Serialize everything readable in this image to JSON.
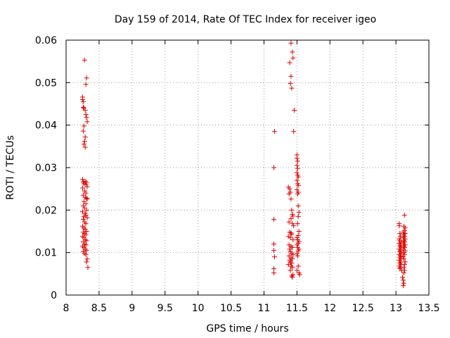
{
  "chart_data": {
    "type": "scatter",
    "title": "Day 159 of 2014, Rate Of TEC Index for receiver igeo",
    "xlabel": "GPS time / hours",
    "ylabel": "ROTI / TECUs",
    "xlim": [
      8,
      13.5
    ],
    "ylim": [
      0,
      0.06
    ],
    "xticks": [
      "8",
      "8.5",
      "9",
      "9.5",
      "10",
      "10.5",
      "11",
      "11.5",
      "12",
      "12.5",
      "13",
      "13.5"
    ],
    "yticks": [
      "0",
      "0.01",
      "0.02",
      "0.03",
      "0.04",
      "0.05",
      "0.06"
    ],
    "grid": true,
    "marker": "+",
    "color": "#e00000",
    "series": [
      {
        "name": "ROTI",
        "points": [
          [
            8.25,
            0.0466
          ],
          [
            8.25,
            0.046
          ],
          [
            8.26,
            0.0455
          ],
          [
            8.26,
            0.0442
          ],
          [
            8.27,
            0.044
          ],
          [
            8.28,
            0.0553
          ],
          [
            8.31,
            0.0511
          ],
          [
            8.3,
            0.0496
          ],
          [
            8.29,
            0.0435
          ],
          [
            8.3,
            0.0425
          ],
          [
            8.31,
            0.0418
          ],
          [
            8.32,
            0.0408
          ],
          [
            8.27,
            0.0398
          ],
          [
            8.26,
            0.0386
          ],
          [
            8.29,
            0.0372
          ],
          [
            8.28,
            0.0362
          ],
          [
            8.27,
            0.0355
          ],
          [
            8.29,
            0.0348
          ],
          [
            8.25,
            0.0272
          ],
          [
            8.26,
            0.0266
          ],
          [
            8.27,
            0.0262
          ],
          [
            8.29,
            0.0268
          ],
          [
            8.3,
            0.026
          ],
          [
            8.31,
            0.0265
          ],
          [
            8.32,
            0.0255
          ],
          [
            8.25,
            0.0252
          ],
          [
            8.28,
            0.0245
          ],
          [
            8.3,
            0.024
          ],
          [
            8.26,
            0.0235
          ],
          [
            8.29,
            0.023
          ],
          [
            8.31,
            0.0228
          ],
          [
            8.32,
            0.0226
          ],
          [
            8.27,
            0.022
          ],
          [
            8.3,
            0.0215
          ],
          [
            8.26,
            0.021
          ],
          [
            8.28,
            0.0205
          ],
          [
            8.31,
            0.02
          ],
          [
            8.25,
            0.0196
          ],
          [
            8.29,
            0.0192
          ],
          [
            8.3,
            0.0188
          ],
          [
            8.27,
            0.0185
          ],
          [
            8.32,
            0.0182
          ],
          [
            8.26,
            0.0178
          ],
          [
            8.28,
            0.0172
          ],
          [
            8.3,
            0.0168
          ],
          [
            8.25,
            0.0162
          ],
          [
            8.27,
            0.0158
          ],
          [
            8.29,
            0.0155
          ],
          [
            8.31,
            0.015
          ],
          [
            8.26,
            0.0148
          ],
          [
            8.28,
            0.0145
          ],
          [
            8.3,
            0.0142
          ],
          [
            8.25,
            0.0138
          ],
          [
            8.27,
            0.0135
          ],
          [
            8.29,
            0.013
          ],
          [
            8.31,
            0.0128
          ],
          [
            8.26,
            0.0125
          ],
          [
            8.28,
            0.012
          ],
          [
            8.3,
            0.0118
          ],
          [
            8.25,
            0.0115
          ],
          [
            8.27,
            0.0112
          ],
          [
            8.29,
            0.0108
          ],
          [
            8.31,
            0.0105
          ],
          [
            8.26,
            0.0102
          ],
          [
            8.28,
            0.0098
          ],
          [
            8.3,
            0.0095
          ],
          [
            8.32,
            0.0085
          ],
          [
            8.31,
            0.0078
          ],
          [
            8.33,
            0.0065
          ],
          [
            11.41,
            0.0593
          ],
          [
            11.43,
            0.0572
          ],
          [
            11.44,
            0.0558
          ],
          [
            11.39,
            0.0547
          ],
          [
            11.41,
            0.0515
          ],
          [
            11.4,
            0.0498
          ],
          [
            11.42,
            0.0487
          ],
          [
            11.46,
            0.0435
          ],
          [
            11.16,
            0.0385
          ],
          [
            11.45,
            0.0385
          ],
          [
            11.15,
            0.03
          ],
          [
            11.37,
            0.0254
          ],
          [
            11.39,
            0.025
          ],
          [
            11.4,
            0.0242
          ],
          [
            11.38,
            0.0238
          ],
          [
            11.41,
            0.0226
          ],
          [
            11.42,
            0.02
          ],
          [
            11.43,
            0.019
          ],
          [
            11.44,
            0.0186
          ],
          [
            11.41,
            0.018
          ],
          [
            11.15,
            0.0178
          ],
          [
            11.38,
            0.0172
          ],
          [
            11.43,
            0.0168
          ],
          [
            11.45,
            0.0163
          ],
          [
            11.39,
            0.0148
          ],
          [
            11.41,
            0.0146
          ],
          [
            11.42,
            0.0143
          ],
          [
            11.37,
            0.0138
          ],
          [
            11.4,
            0.0135
          ],
          [
            11.44,
            0.013
          ],
          [
            11.15,
            0.012
          ],
          [
            11.38,
            0.0118
          ],
          [
            11.41,
            0.0115
          ],
          [
            11.43,
            0.0112
          ],
          [
            11.39,
            0.0108
          ],
          [
            11.15,
            0.0105
          ],
          [
            11.4,
            0.0102
          ],
          [
            11.42,
            0.0098
          ],
          [
            11.44,
            0.0095
          ],
          [
            11.38,
            0.0092
          ],
          [
            11.16,
            0.009
          ],
          [
            11.41,
            0.0088
          ],
          [
            11.43,
            0.0085
          ],
          [
            11.39,
            0.0082
          ],
          [
            11.4,
            0.0078
          ],
          [
            11.42,
            0.0075
          ],
          [
            11.37,
            0.0072
          ],
          [
            11.15,
            0.0062
          ],
          [
            11.41,
            0.0068
          ],
          [
            11.43,
            0.0065
          ],
          [
            11.4,
            0.0058
          ],
          [
            11.15,
            0.0052
          ],
          [
            11.44,
            0.0048
          ],
          [
            11.42,
            0.0045
          ],
          [
            11.43,
            0.0042
          ],
          [
            11.5,
            0.033
          ],
          [
            11.5,
            0.0322
          ],
          [
            11.51,
            0.0315
          ],
          [
            11.5,
            0.0305
          ],
          [
            11.51,
            0.0298
          ],
          [
            11.5,
            0.0288
          ],
          [
            11.51,
            0.0282
          ],
          [
            11.52,
            0.0278
          ],
          [
            11.5,
            0.027
          ],
          [
            11.51,
            0.0262
          ],
          [
            11.52,
            0.0258
          ],
          [
            11.5,
            0.0248
          ],
          [
            11.52,
            0.0242
          ],
          [
            11.51,
            0.0238
          ],
          [
            11.52,
            0.021
          ],
          [
            11.53,
            0.0195
          ],
          [
            11.52,
            0.0185
          ],
          [
            11.51,
            0.0168
          ],
          [
            11.53,
            0.015
          ],
          [
            11.52,
            0.014
          ],
          [
            11.5,
            0.0135
          ],
          [
            11.51,
            0.013
          ],
          [
            11.53,
            0.0126
          ],
          [
            11.52,
            0.0122
          ],
          [
            11.5,
            0.0118
          ],
          [
            11.51,
            0.0112
          ],
          [
            11.53,
            0.0108
          ],
          [
            11.52,
            0.0104
          ],
          [
            11.5,
            0.0098
          ],
          [
            11.51,
            0.0092
          ],
          [
            11.52,
            0.0068
          ],
          [
            11.5,
            0.0058
          ],
          [
            11.53,
            0.0052
          ],
          [
            11.54,
            0.0048
          ],
          [
            13.05,
            0.0168
          ],
          [
            13.05,
            0.0163
          ],
          [
            13.06,
            0.0145
          ],
          [
            13.07,
            0.0138
          ],
          [
            13.05,
            0.0132
          ],
          [
            13.06,
            0.0128
          ],
          [
            13.08,
            0.0125
          ],
          [
            13.05,
            0.0122
          ],
          [
            13.07,
            0.0118
          ],
          [
            13.06,
            0.0115
          ],
          [
            13.08,
            0.0112
          ],
          [
            13.05,
            0.0108
          ],
          [
            13.07,
            0.0105
          ],
          [
            13.06,
            0.0102
          ],
          [
            13.08,
            0.0098
          ],
          [
            13.05,
            0.0095
          ],
          [
            13.07,
            0.0092
          ],
          [
            13.06,
            0.0088
          ],
          [
            13.08,
            0.0085
          ],
          [
            13.05,
            0.0082
          ],
          [
            13.07,
            0.0078
          ],
          [
            13.06,
            0.0075
          ],
          [
            13.08,
            0.0072
          ],
          [
            13.05,
            0.0068
          ],
          [
            13.07,
            0.0065
          ],
          [
            13.06,
            0.0062
          ],
          [
            13.09,
            0.0058
          ],
          [
            13.1,
            0.0042
          ],
          [
            13.11,
            0.0035
          ],
          [
            13.12,
            0.0028
          ],
          [
            13.11,
            0.0022
          ],
          [
            13.13,
            0.0188
          ],
          [
            13.12,
            0.0162
          ],
          [
            13.14,
            0.0158
          ],
          [
            13.13,
            0.0152
          ],
          [
            13.11,
            0.0148
          ],
          [
            13.14,
            0.0145
          ],
          [
            13.12,
            0.0142
          ],
          [
            13.13,
            0.0138
          ],
          [
            13.11,
            0.0135
          ],
          [
            13.14,
            0.0132
          ],
          [
            13.12,
            0.0128
          ],
          [
            13.13,
            0.0125
          ],
          [
            13.11,
            0.0122
          ],
          [
            13.14,
            0.0118
          ],
          [
            13.12,
            0.0115
          ],
          [
            13.13,
            0.0112
          ],
          [
            13.11,
            0.0108
          ],
          [
            13.14,
            0.0104
          ],
          [
            13.12,
            0.01
          ],
          [
            13.13,
            0.0095
          ],
          [
            13.11,
            0.009
          ],
          [
            13.12,
            0.0085
          ],
          [
            13.14,
            0.0078
          ],
          [
            13.13,
            0.0072
          ],
          [
            13.12,
            0.0065
          ],
          [
            13.13,
            0.0058
          ],
          [
            13.12,
            0.0052
          ]
        ]
      }
    ]
  }
}
